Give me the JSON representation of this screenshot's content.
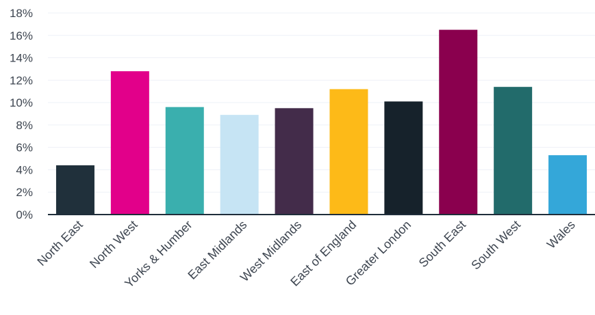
{
  "chart_data": {
    "type": "bar",
    "title": "",
    "xlabel": "",
    "ylabel": "",
    "ylim": [
      0,
      18
    ],
    "yticks": [
      0,
      2,
      4,
      6,
      8,
      10,
      12,
      14,
      16,
      18
    ],
    "ytick_labels": [
      "0%",
      "2%",
      "4%",
      "6%",
      "8%",
      "10%",
      "12%",
      "14%",
      "16%",
      "18%"
    ],
    "grid": true,
    "categories": [
      "North East",
      "North West",
      "Yorks & Humber",
      "East Midlands",
      "West Midlands",
      "East of England",
      "Greater London",
      "South East",
      "South West",
      "Wales"
    ],
    "values": [
      4.4,
      12.8,
      9.6,
      8.9,
      9.5,
      11.2,
      10.1,
      16.5,
      11.4,
      5.3
    ],
    "colors": [
      "#20303b",
      "#e2008a",
      "#3aafae",
      "#c6e4f4",
      "#432c4a",
      "#fdba18",
      "#16222b",
      "#8a004e",
      "#226b6b",
      "#34a7d9"
    ]
  }
}
